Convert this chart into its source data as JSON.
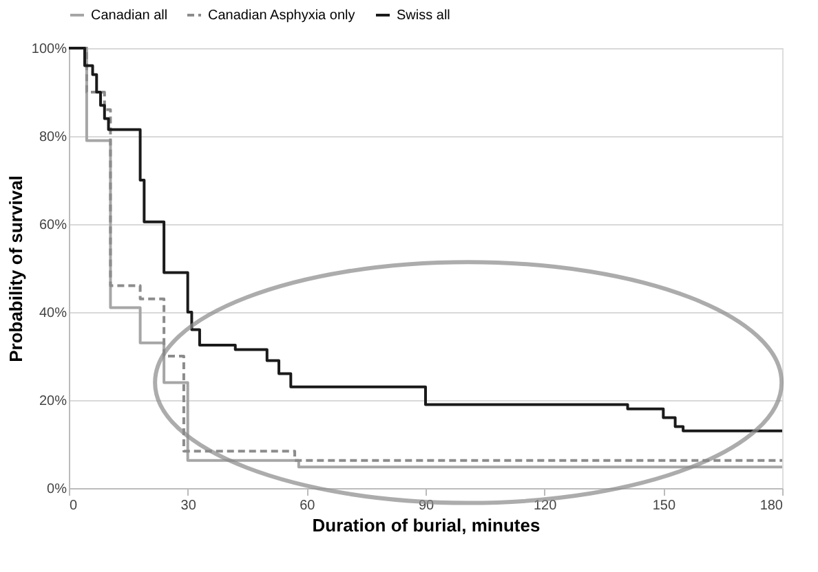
{
  "chart_data": {
    "type": "step",
    "xlabel": "Duration of burial, minutes",
    "ylabel": "Probability of survival",
    "series": [
      {
        "name": "Canadian all",
        "color": "#a6a6a6",
        "line_style": "solid",
        "x": [
          0,
          4.5,
          10.5,
          18,
          24,
          30,
          58,
          180
        ],
        "values": [
          100,
          79,
          41,
          33,
          24,
          6.3,
          4.8,
          4.8
        ]
      },
      {
        "name": "Canadian Asphyxia only",
        "color": "#8c8c8c",
        "line_style": "dashed",
        "x": [
          0,
          4.5,
          9,
          10.5,
          18,
          24,
          29,
          57,
          180
        ],
        "values": [
          100,
          90,
          86,
          46,
          43,
          30,
          8.4,
          6.3,
          6.3
        ]
      },
      {
        "name": "Swiss all",
        "color": "#1a1a1a",
        "line_style": "solid",
        "x": [
          0,
          4,
          6,
          7,
          8,
          9,
          10,
          18,
          19,
          24,
          30,
          31,
          33,
          42,
          50,
          53,
          56,
          90,
          141,
          150,
          153,
          155,
          180
        ],
        "values": [
          100,
          96,
          94,
          90,
          87,
          84,
          81.5,
          70,
          60.5,
          49,
          40,
          36,
          32.5,
          31.5,
          29,
          26,
          23,
          19,
          18,
          16,
          14,
          13,
          13
        ]
      }
    ],
    "xlim": [
      0,
      180
    ],
    "xticks": [
      0,
      30,
      60,
      90,
      120,
      150,
      180
    ],
    "ylim": [
      0,
      100
    ],
    "yticks": [
      {
        "value": 0,
        "label": "0%"
      },
      {
        "value": 20,
        "label": "20%"
      },
      {
        "value": 40,
        "label": "40%"
      },
      {
        "value": 60,
        "label": "60%"
      },
      {
        "value": 80,
        "label": "80%"
      },
      {
        "value": 100,
        "label": "100%"
      }
    ],
    "grid": "y",
    "legend": "top",
    "marker": "none"
  }
}
